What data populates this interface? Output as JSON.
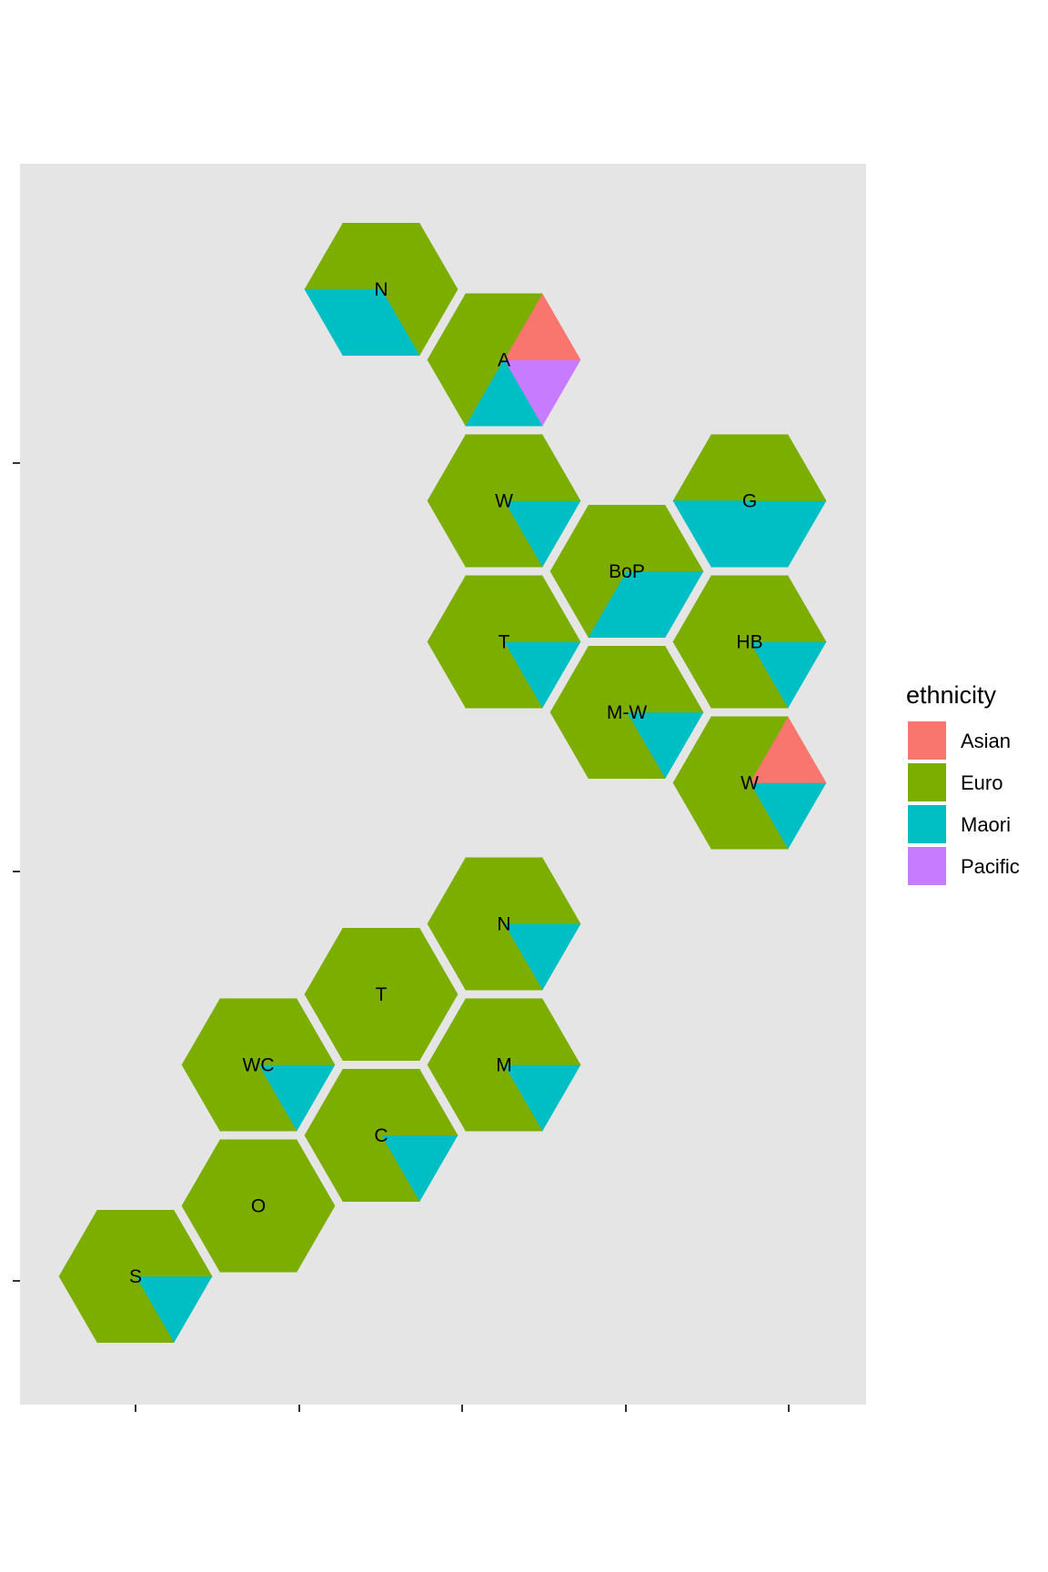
{
  "chart_data": {
    "type": "other",
    "legend": {
      "title": "ethnicity",
      "position": "right",
      "items": [
        {
          "name": "Asian",
          "color": "#F8766D"
        },
        {
          "name": "Euro",
          "color": "#7CAE00"
        },
        {
          "name": "Maori",
          "color": "#00BFC4"
        },
        {
          "name": "Pacific",
          "color": "#C77CFF"
        }
      ]
    },
    "background": "#E5E5E5",
    "grid": false,
    "regions": [
      {
        "label": "N",
        "col": 2,
        "row": 0,
        "wedges": [
          "Euro",
          "Euro",
          "Euro",
          "Euro",
          "Maori",
          "Maori"
        ]
      },
      {
        "label": "A",
        "col": 3,
        "row": 0.5,
        "wedges": [
          "Pacific",
          "Asian",
          "Euro",
          "Euro",
          "Euro",
          "Maori"
        ]
      },
      {
        "label": "W",
        "col": 3,
        "row": 1.5,
        "wedges": [
          "Maori",
          "Euro",
          "Euro",
          "Euro",
          "Euro",
          "Euro"
        ]
      },
      {
        "label": "BoP",
        "col": 4,
        "row": 2,
        "wedges": [
          "Maori",
          "Euro",
          "Euro",
          "Euro",
          "Euro",
          "Maori"
        ]
      },
      {
        "label": "G",
        "col": 5,
        "row": 1.5,
        "wedges": [
          "Maori",
          "Euro",
          "Euro",
          "Euro",
          "Maori",
          "Maori"
        ]
      },
      {
        "label": "T",
        "col": 3,
        "row": 2.5,
        "wedges": [
          "Maori",
          "Euro",
          "Euro",
          "Euro",
          "Euro",
          "Euro"
        ]
      },
      {
        "label": "HB",
        "col": 5,
        "row": 2.5,
        "wedges": [
          "Maori",
          "Euro",
          "Euro",
          "Euro",
          "Euro",
          "Euro"
        ]
      },
      {
        "label": "M-W",
        "col": 4,
        "row": 3,
        "wedges": [
          "Maori",
          "Euro",
          "Euro",
          "Euro",
          "Euro",
          "Euro"
        ]
      },
      {
        "label": "W",
        "col": 5,
        "row": 3.5,
        "wedges": [
          "Maori",
          "Asian",
          "Euro",
          "Euro",
          "Euro",
          "Euro"
        ]
      },
      {
        "label": "N",
        "col": 3,
        "row": 4.5,
        "wedges": [
          "Maori",
          "Euro",
          "Euro",
          "Euro",
          "Euro",
          "Euro"
        ]
      },
      {
        "label": "T",
        "col": 2,
        "row": 5,
        "wedges": [
          "Euro",
          "Euro",
          "Euro",
          "Euro",
          "Euro",
          "Euro"
        ]
      },
      {
        "label": "WC",
        "col": 1,
        "row": 5.5,
        "wedges": [
          "Maori",
          "Euro",
          "Euro",
          "Euro",
          "Euro",
          "Euro"
        ]
      },
      {
        "label": "M",
        "col": 3,
        "row": 5.5,
        "wedges": [
          "Maori",
          "Euro",
          "Euro",
          "Euro",
          "Euro",
          "Euro"
        ]
      },
      {
        "label": "C",
        "col": 2,
        "row": 6,
        "wedges": [
          "Maori",
          "Euro",
          "Euro",
          "Euro",
          "Euro",
          "Euro"
        ]
      },
      {
        "label": "O",
        "col": 1,
        "row": 6.5,
        "wedges": [
          "Euro",
          "Euro",
          "Euro",
          "Euro",
          "Euro",
          "Euro"
        ]
      },
      {
        "label": "S",
        "col": 0,
        "row": 7,
        "wedges": [
          "Maori",
          "Euro",
          "Euro",
          "Euro",
          "Euro",
          "Euro"
        ]
      }
    ],
    "x_ticks": [
      "",
      "",
      "",
      "",
      ""
    ],
    "y_ticks": [
      "",
      "",
      ""
    ]
  }
}
